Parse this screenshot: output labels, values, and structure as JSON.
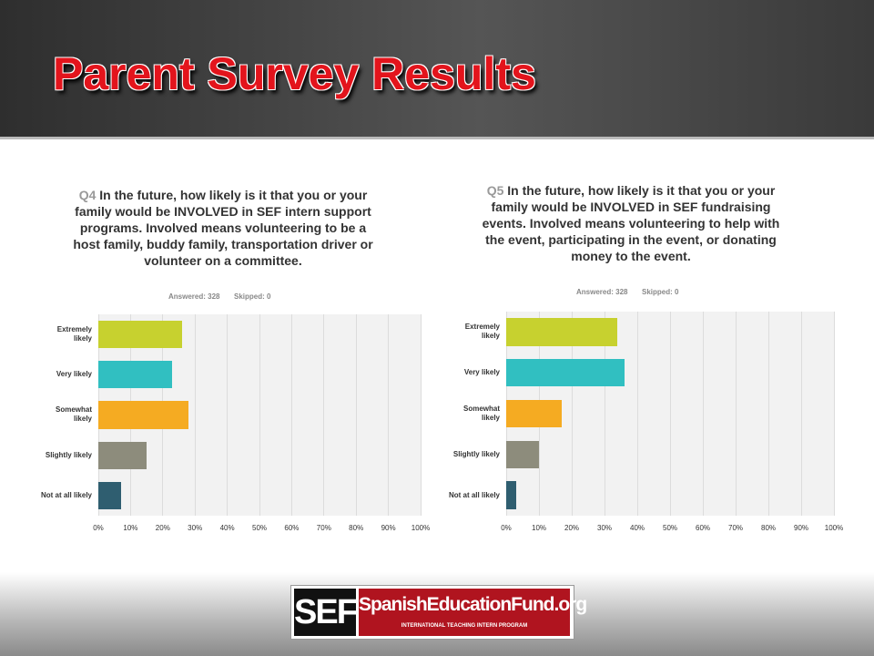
{
  "slide_title": "Parent Survey Results",
  "logo": {
    "short": "SEF",
    "name": "SpanishEducationFund.org",
    "tagline": "INTERNATIONAL TEACHING INTERN PROGRAM"
  },
  "chart_data": [
    {
      "type": "hbar",
      "question_number": "Q4",
      "title": "In the future, how likely is it that you or your family would be INVOLVED in SEF intern support programs. Involved means volunteering to be a host family, buddy family, transportation driver or volunteer on a committee.",
      "answered": "Answered: 328",
      "skipped": "Skipped: 0",
      "categories": [
        "Extremely likely",
        "Very likely",
        "Somewhat likely",
        "Slightly likely",
        "Not at all likely"
      ],
      "values": [
        26,
        23,
        28,
        15,
        7
      ],
      "colors": [
        "#c7d12f",
        "#31bfc1",
        "#f5ab22",
        "#8d8c7c",
        "#2f5e70"
      ],
      "xlim": [
        0,
        100
      ],
      "xticks": [
        {
          "value": 0,
          "label": "0%"
        },
        {
          "value": 10,
          "label": "10%"
        },
        {
          "value": 20,
          "label": "20%"
        },
        {
          "value": 30,
          "label": "30%"
        },
        {
          "value": 40,
          "label": "40%"
        },
        {
          "value": 50,
          "label": "50%"
        },
        {
          "value": 60,
          "label": "60%"
        },
        {
          "value": 70,
          "label": "70%"
        },
        {
          "value": 80,
          "label": "80%"
        },
        {
          "value": 90,
          "label": "90%"
        },
        {
          "value": 100,
          "label": "100%"
        }
      ],
      "grid": true
    },
    {
      "type": "hbar",
      "question_number": "Q5",
      "title": "In the future, how likely is it that you or your family would be INVOLVED in SEF fundraising events. Involved means volunteering to help with the event, participating in the event, or donating money to the event.",
      "answered": "Answered: 328",
      "skipped": "Skipped: 0",
      "categories": [
        "Extremely likely",
        "Very likely",
        "Somewhat likely",
        "Slightly likely",
        "Not at all likely"
      ],
      "values": [
        34,
        36,
        17,
        10,
        3
      ],
      "colors": [
        "#c7d12f",
        "#31bfc1",
        "#f5ab22",
        "#8d8c7c",
        "#2f5e70"
      ],
      "xlim": [
        0,
        100
      ],
      "xticks": [
        {
          "value": 0,
          "label": "0%"
        },
        {
          "value": 10,
          "label": "10%"
        },
        {
          "value": 20,
          "label": "20%"
        },
        {
          "value": 30,
          "label": "30%"
        },
        {
          "value": 40,
          "label": "40%"
        },
        {
          "value": 50,
          "label": "50%"
        },
        {
          "value": 60,
          "label": "60%"
        },
        {
          "value": 70,
          "label": "70%"
        },
        {
          "value": 80,
          "label": "80%"
        },
        {
          "value": 90,
          "label": "90%"
        },
        {
          "value": 100,
          "label": "100%"
        }
      ],
      "grid": true
    }
  ]
}
